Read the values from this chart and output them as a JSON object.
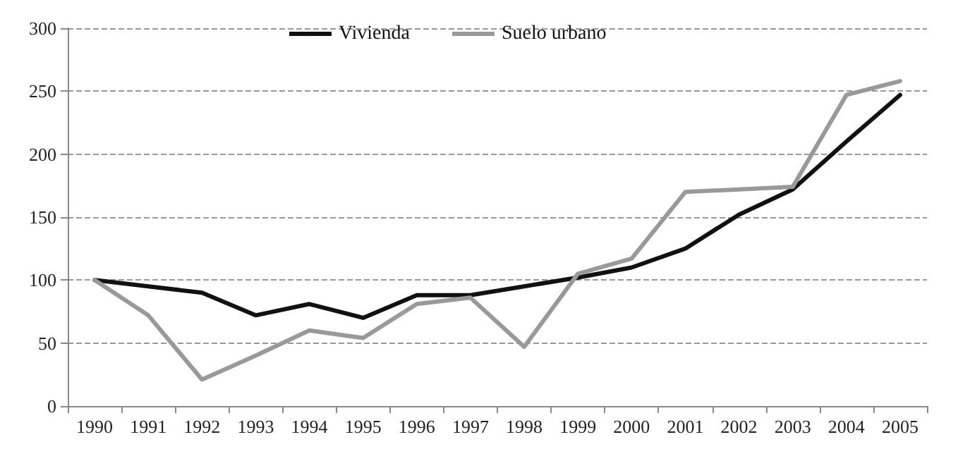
{
  "chart_data": {
    "type": "line",
    "categories": [
      "1990",
      "1991",
      "1992",
      "1993",
      "1994",
      "1995",
      "1996",
      "1997",
      "1998",
      "1999",
      "2000",
      "2001",
      "2002",
      "2003",
      "2004",
      "2005"
    ],
    "series": [
      {
        "name": "Vivienda",
        "color": "#111111",
        "values": [
          100,
          95,
          90,
          72,
          81,
          70,
          88,
          88,
          95,
          102,
          110,
          125,
          152,
          172,
          210,
          247
        ]
      },
      {
        "name": "Suelo urbano",
        "color": "#999999",
        "values": [
          100,
          72,
          21,
          40,
          60,
          54,
          81,
          86,
          47,
          105,
          117,
          170,
          172,
          174,
          247,
          258
        ]
      }
    ],
    "ylim": [
      0,
      300
    ],
    "yticks": [
      0,
      50,
      100,
      150,
      200,
      250,
      300
    ],
    "grid": "y",
    "legend": "top",
    "marker": "none",
    "line_style": "solid"
  }
}
